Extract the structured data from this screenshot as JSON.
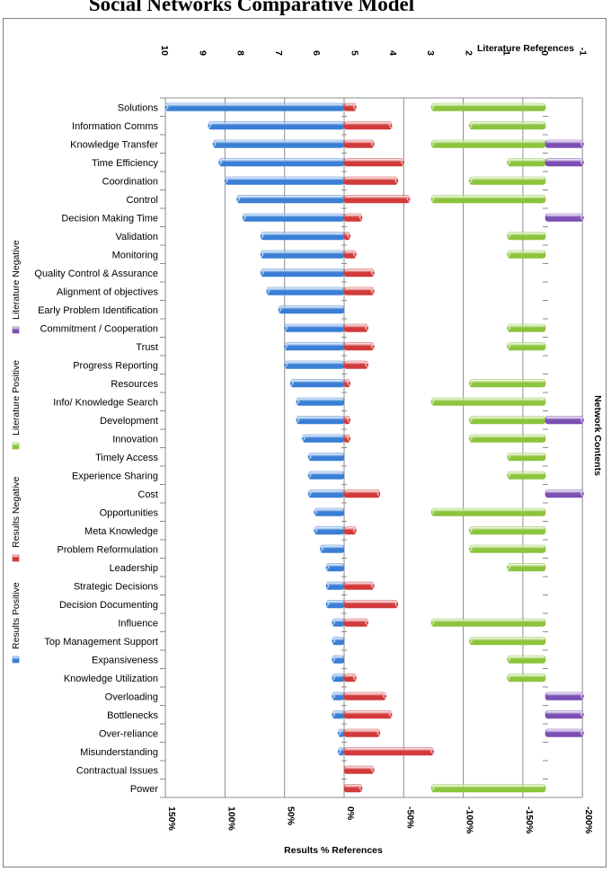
{
  "title": "Social Networks Comparative Model",
  "colors": {
    "results_positive": "#3a7fd5",
    "results_negative": "#d23a3a",
    "literature_positive": "#8cc43c",
    "literature_negative": "#7b4fb3"
  },
  "chart_data": {
    "type": "bar",
    "orientation": "horizontal",
    "categories": [
      "Solutions",
      "Information Comms",
      "Knowledge Transfer",
      "Time Efficiency",
      "Coordination",
      "Control",
      "Decision Making Time",
      "Validation",
      "Monitoring",
      "Quality Control & Assurance",
      "Alignment of objectives",
      "Early Problem Identification",
      "Commitment / Cooperation",
      "Trust",
      "Progress Reporting",
      "Resources",
      "Info/ Knowledge Search",
      "Development",
      "Innovation",
      "Timely Access",
      "Experience Sharing",
      "Cost",
      "Opportunities",
      "Meta Knowledge",
      "Problem Reformulation",
      "Leadership",
      "Strategic Decisions",
      "Decision Documenting",
      "Influence",
      "Top Management Support",
      "Expansiveness",
      "Knowledge Utilization",
      "Overloading",
      "Bottlenecks",
      "Over-reliance",
      "Misunderstanding",
      "Contractual Issues",
      "Power"
    ],
    "series": [
      {
        "name": "Results Positive",
        "axis": "results",
        "values": [
          150,
          114,
          110,
          105,
          100,
          90,
          85,
          70,
          70,
          70,
          65,
          55,
          50,
          50,
          50,
          45,
          40,
          40,
          35,
          30,
          30,
          30,
          25,
          25,
          20,
          15,
          15,
          15,
          10,
          10,
          10,
          10,
          10,
          10,
          5,
          5,
          0,
          0
        ]
      },
      {
        "name": "Results Negative",
        "axis": "results",
        "values": [
          -10,
          -40,
          -25,
          -50,
          -45,
          -55,
          -15,
          -5,
          -10,
          -25,
          -25,
          0,
          -20,
          -25,
          -20,
          -5,
          0,
          -5,
          -5,
          0,
          0,
          -30,
          0,
          -10,
          0,
          0,
          -25,
          -45,
          -20,
          0,
          0,
          -10,
          -35,
          -40,
          -30,
          -75,
          -25,
          -15
        ]
      },
      {
        "name": "Literature Positive",
        "axis": "literature",
        "values": [
          3,
          2,
          3,
          1,
          2,
          3,
          0,
          1,
          1,
          0,
          0,
          0,
          1,
          1,
          0,
          2,
          3,
          2,
          2,
          1,
          1,
          0,
          3,
          2,
          2,
          1,
          0,
          0,
          3,
          2,
          1,
          1,
          0,
          0,
          0,
          0,
          0,
          3
        ]
      },
      {
        "name": "Literature Negative",
        "axis": "literature",
        "values": [
          0,
          0,
          -1,
          -1,
          0,
          0,
          -1,
          0,
          0,
          0,
          0,
          0,
          0,
          0,
          0,
          0,
          0,
          -1,
          0,
          0,
          0,
          -1,
          0,
          0,
          0,
          0,
          0,
          0,
          0,
          0,
          0,
          0,
          -1,
          -1,
          -1,
          0,
          0,
          0
        ]
      }
    ],
    "results_axis": {
      "label": "Results % References",
      "ticks": [
        "150%",
        "100%",
        "50%",
        "0%",
        "-50%",
        "-100%",
        "-150%",
        "-200%"
      ],
      "range": [
        150,
        -200
      ]
    },
    "literature_axis": {
      "label": "Literature References",
      "ticks": [
        "10",
        "9",
        "8",
        "7",
        "6",
        "5",
        "4",
        "3",
        "2",
        "1",
        "0",
        "-1"
      ],
      "range": [
        10,
        -1
      ]
    },
    "side_label": "Network Contents",
    "legend": [
      "Results Positive",
      "Results Negative",
      "Literature Positive",
      "Literature Negative"
    ],
    "legend_placement": "left",
    "grid": true
  }
}
